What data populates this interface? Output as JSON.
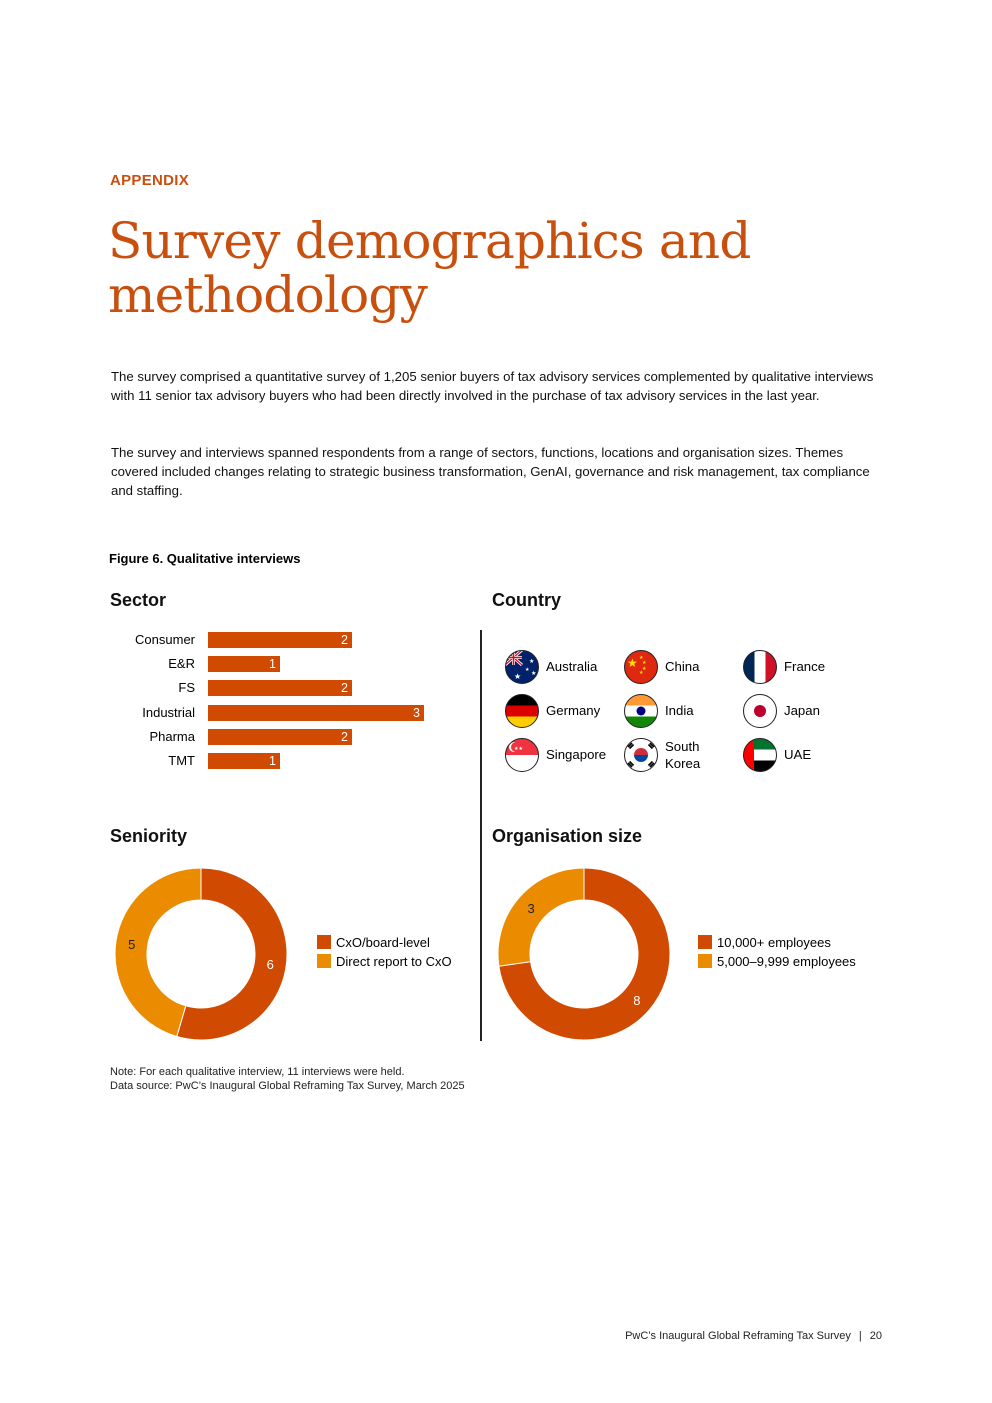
{
  "header": {
    "eyebrow": "APPENDIX",
    "title": "Survey demographics and methodology"
  },
  "body": {
    "paragraphs": [
      "The survey comprised a quantitative survey of 1,205 senior buyers of tax advisory services complemented by qualitative interviews with 11 senior tax advisory buyers who had been directly involved in the purchase of tax advisory services in the last year.",
      "The survey and interviews spanned respondents from a range of sectors, functions, locations and organisation sizes. Themes covered included changes relating to strategic business transformation, GenAI, governance and risk management, tax compliance and staffing."
    ]
  },
  "figure": {
    "title": "Figure 6. Qualitative interviews"
  },
  "colors": {
    "primary": "#d04a02",
    "secondary": "#eb8c00",
    "title": "#c8500f"
  },
  "sector": {
    "title": "Sector",
    "chart_data": {
      "type": "bar",
      "orientation": "horizontal",
      "title": "Sector",
      "categories": [
        "Consumer",
        "E&R",
        "FS",
        "Industrial",
        "Pharma",
        "TMT"
      ],
      "values": [
        2,
        1,
        2,
        3,
        2,
        1
      ]
    }
  },
  "country": {
    "title": "Country",
    "items": [
      {
        "name": "Australia",
        "icon": "australia-flag-icon"
      },
      {
        "name": "China",
        "icon": "china-flag-icon"
      },
      {
        "name": "France",
        "icon": "france-flag-icon"
      },
      {
        "name": "Germany",
        "icon": "germany-flag-icon"
      },
      {
        "name": "India",
        "icon": "india-flag-icon"
      },
      {
        "name": "Japan",
        "icon": "japan-flag-icon"
      },
      {
        "name": "Singapore",
        "icon": "singapore-flag-icon"
      },
      {
        "name": "South Korea",
        "icon": "south-korea-flag-icon"
      },
      {
        "name": "UAE",
        "icon": "uae-flag-icon"
      }
    ]
  },
  "seniority": {
    "title": "Seniority",
    "chart_data": {
      "type": "pie",
      "title": "Seniority",
      "categories": [
        "CxO/board-level",
        "Direct report to CxO"
      ],
      "values": [
        6,
        5
      ]
    }
  },
  "org_size": {
    "title": "Organisation size",
    "chart_data": {
      "type": "pie",
      "title": "Organisation size",
      "categories": [
        "10,000+ employees",
        "5,000–9,999 employees"
      ],
      "values": [
        8,
        3
      ]
    }
  },
  "notes": {
    "note": "Note: For each qualitative interview, 11 interviews were held.",
    "source": "Data source: PwC’s Inaugural Global Reframing Tax Survey, March 2025"
  },
  "footer": {
    "report": "PwC’s Inaugural Global Reframing Tax Survey",
    "separator": "|",
    "page": "20"
  }
}
